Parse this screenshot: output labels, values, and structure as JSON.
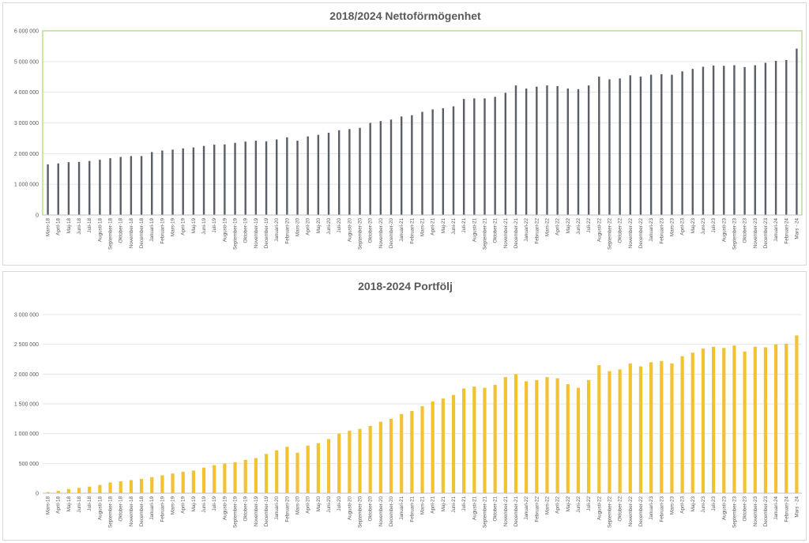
{
  "charts": [
    {
      "id": "netto",
      "type": "bar",
      "title": "2018/2024 Nettoförmögenhet",
      "bar_color": "#5a5e66",
      "plot_border_color": "#92d050",
      "ylim": [
        0,
        6000000
      ],
      "yticks": [
        "0",
        "1 000 000",
        "2 000 000",
        "3 000 000",
        "4 000 000",
        "5 000 000",
        "6 000 000"
      ],
      "grid": true
    },
    {
      "id": "portfolj",
      "type": "bar",
      "title": "2018-2024 Portfölj",
      "bar_color": "#f2c232",
      "plot_border_color": "",
      "ylim": [
        0,
        3000000
      ],
      "yticks": [
        "0",
        "500 000",
        "1 000 000",
        "1 500 000",
        "2 000 000",
        "2 500 000",
        "3 000 000"
      ],
      "grid": true
    }
  ],
  "chart_data": [
    {
      "type": "bar",
      "title": "2018/2024 Nettoförmögenhet",
      "xlabel": "",
      "ylabel": "",
      "ylim": [
        0,
        6000000
      ],
      "categories": [
        "Mars-18",
        "April-18",
        "Maj-18",
        "Juni-18",
        "Juli-18",
        "Augusti-18",
        "September-18",
        "Oktober-18",
        "November-18",
        "December-18",
        "Januari-19",
        "Februari-19",
        "Mars-19",
        "April-19",
        "Maj-19",
        "Juni-19",
        "Juli-19",
        "Augusti-19",
        "September-19",
        "Oktober-19",
        "November-19",
        "December-19",
        "Januari-20",
        "Februari-20",
        "Mars-20",
        "April-20",
        "Maj-20",
        "Juni-20",
        "Juli-20",
        "Augusti-20",
        "September-20",
        "Oktober-20",
        "November-20",
        "December-20",
        "Januari-21",
        "Februari-21",
        "Mars-21",
        "April-21",
        "Maj-21",
        "Juni-21",
        "Juli-21",
        "Augusti-21",
        "September-21",
        "Oktober-21",
        "November-21",
        "December-21",
        "Januari-22",
        "Februari-22",
        "Mars-22",
        "April-22",
        "Maj-22",
        "Juni-22",
        "Juli-22",
        "Augusti-22",
        "September-22",
        "Oktober-22",
        "November-22",
        "December-22",
        "Januari-23",
        "Februari-23",
        "Mars-23",
        "April-23",
        "Maj-23",
        "Juni-23",
        "Juli-23",
        "Augusti-23",
        "September-23",
        "Oktober-23",
        "November-23",
        "December-23",
        "Januari-24",
        "Februari-24",
        "Mars - 24"
      ],
      "values": [
        1650000,
        1680000,
        1720000,
        1730000,
        1760000,
        1800000,
        1850000,
        1890000,
        1920000,
        1920000,
        2050000,
        2100000,
        2130000,
        2170000,
        2200000,
        2250000,
        2290000,
        2300000,
        2350000,
        2390000,
        2420000,
        2400000,
        2460000,
        2530000,
        2420000,
        2560000,
        2610000,
        2680000,
        2760000,
        2800000,
        2840000,
        3000000,
        3060000,
        3110000,
        3210000,
        3250000,
        3360000,
        3440000,
        3480000,
        3540000,
        3780000,
        3800000,
        3800000,
        3850000,
        3980000,
        4220000,
        4120000,
        4180000,
        4220000,
        4200000,
        4120000,
        4100000,
        4220000,
        4510000,
        4420000,
        4450000,
        4550000,
        4510000,
        4570000,
        4590000,
        4570000,
        4680000,
        4760000,
        4830000,
        4870000,
        4860000,
        4880000,
        4820000,
        4880000,
        4960000,
        5020000,
        5050000,
        5420000
      ]
    },
    {
      "type": "bar",
      "title": "2018-2024 Portfölj",
      "xlabel": "",
      "ylabel": "",
      "ylim": [
        0,
        3000000
      ],
      "categories": [
        "Mars-18",
        "April-18",
        "Maj-18",
        "Juni-18",
        "Juli-18",
        "Augusti-18",
        "September-18",
        "Oktober-18",
        "November-18",
        "December-18",
        "Januari-19",
        "Februari-19",
        "Mars-19",
        "April-19",
        "Maj-19",
        "Juni-19",
        "Juli-19",
        "Augusti-19",
        "September-19",
        "Oktober-19",
        "November-19",
        "December-19",
        "Januari-20",
        "Februari-20",
        "Mars-20",
        "April-20",
        "Maj-20",
        "Juni-20",
        "Juli-20",
        "Augusti-20",
        "September-20",
        "Oktober-20",
        "November-20",
        "December-20",
        "Januari-21",
        "Februari-21",
        "Mars-21",
        "April-21",
        "Maj-21",
        "Juni-21",
        "Juli-21",
        "Augusti-21",
        "September-21",
        "Oktober-21",
        "November-21",
        "December-21",
        "Januari-22",
        "Februari-22",
        "Mars-22",
        "April-22",
        "Maj-22",
        "Juni-22",
        "Juli-22",
        "Augusti-22",
        "September-22",
        "Oktober-22",
        "November-22",
        "December-22",
        "Januari-23",
        "Februari-23",
        "Mars-23",
        "April-23",
        "Maj-23",
        "Juni-23",
        "Juli-23",
        "Augusti-23",
        "September-23",
        "Oktober-23",
        "November-23",
        "December-23",
        "Januari-24",
        "Februari-24",
        "Mars - 24"
      ],
      "values": [
        20000,
        40000,
        70000,
        90000,
        110000,
        140000,
        180000,
        200000,
        220000,
        240000,
        270000,
        300000,
        330000,
        360000,
        380000,
        430000,
        470000,
        500000,
        520000,
        560000,
        590000,
        660000,
        720000,
        780000,
        680000,
        800000,
        840000,
        910000,
        1000000,
        1050000,
        1080000,
        1130000,
        1200000,
        1250000,
        1330000,
        1380000,
        1460000,
        1540000,
        1590000,
        1650000,
        1760000,
        1790000,
        1770000,
        1820000,
        1950000,
        2000000,
        1880000,
        1900000,
        1950000,
        1930000,
        1830000,
        1770000,
        1900000,
        2150000,
        2050000,
        2080000,
        2180000,
        2130000,
        2200000,
        2220000,
        2180000,
        2300000,
        2360000,
        2430000,
        2460000,
        2440000,
        2480000,
        2380000,
        2460000,
        2450000,
        2500000,
        2510000,
        2650000
      ]
    }
  ]
}
